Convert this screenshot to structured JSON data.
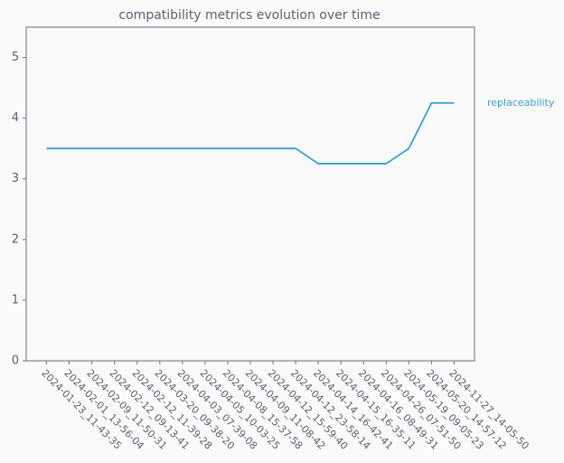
{
  "chart_data": {
    "type": "line",
    "title": "compatibility metrics evolution over time",
    "categories": [
      "2024-01-23_11-43-35",
      "2024-02-01_13-56-04",
      "2024-02-09_11-50-31",
      "2024-02-12_09-13-41",
      "2024-02-12_11-39-28",
      "2024-03-20_09-38-20",
      "2024-04-03_07-39-08",
      "2024-04-05_10-03-25",
      "2024-04-08_15-37-58",
      "2024-04-09_11-08-42",
      "2024-04-12_15-59-40",
      "2024-04-12_23-58-14",
      "2024-04-14_16-42-41",
      "2024-04-15_16-35-11",
      "2024-04-16_08-49-31",
      "2024-04-26_07-51-50",
      "2024-05-19_09-05-23",
      "2024-05-20_14-57-12",
      "2024-11-27_14-05-50"
    ],
    "series": [
      {
        "name": "replaceability",
        "color": "#3a9fcf",
        "values": [
          3.5,
          3.5,
          3.5,
          3.5,
          3.5,
          3.5,
          3.5,
          3.5,
          3.5,
          3.5,
          3.5,
          3.5,
          3.25,
          3.25,
          3.25,
          3.25,
          3.5,
          4.25,
          4.25
        ]
      }
    ],
    "ylim": [
      0,
      5.5
    ],
    "yticks": [
      0,
      1,
      2,
      3,
      4,
      5
    ],
    "grid": false
  }
}
